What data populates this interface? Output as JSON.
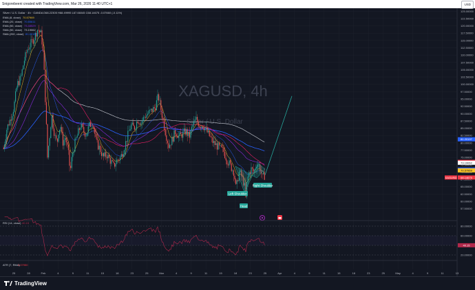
{
  "header": {
    "caption": "Snigorebeeni created with TradingView.com, Mar 26, 2026 11:40 UTC+1",
    "currency": "USD"
  },
  "legend": {
    "symbol_line": "Silver / U.S. Dollar · 4h · OANDA",
    "ohlc": "O68.22305 H68.49995 L67.66045 C68.14675 -0.07660 (-0.11%)",
    "ema8": {
      "label": "EMA (8, close)",
      "value": "70.57969"
    },
    "ema20": {
      "label": "EMA (20, close)",
      "value": "70.85611"
    },
    "ema50": {
      "label": "EMA (50, close)",
      "value": "73.48529"
    },
    "sma50": {
      "label": "SMA (50, close)",
      "value": "73.19062"
    },
    "sma200": {
      "label": "SMA (200, close)",
      "value": "81.20197"
    }
  },
  "watermark": {
    "symbol": "XAGUSD, 4h",
    "name": "Silver / U.S. Dollar"
  },
  "annotations": {
    "left": "Left Shoulder",
    "head": "Head",
    "right": "Right Shoulder"
  },
  "rsi": {
    "label": "RSI (14, close)",
    "value": "40.15",
    "levels": [
      "80.00000",
      "60.00000",
      "40.00000",
      "20.00000"
    ]
  },
  "atr": {
    "label": "ATR (7, RMA)",
    "value": "3.07950"
  },
  "chart_data": {
    "type": "candlestick",
    "symbol": "XAGUSD",
    "timeframe": "4h",
    "y_ticks": [
      "125.00000",
      "122.50000",
      "120.00000",
      "117.50000",
      "115.00000",
      "112.50000",
      "110.00000",
      "107.50000",
      "105.00000",
      "102.50000",
      "100.00000",
      "97.50000",
      "95.00000",
      "92.50000",
      "90.00000",
      "87.50000",
      "85.00000",
      "82.50000",
      "80.00000",
      "77.50000",
      "75.00000",
      "72.50000",
      "70.00000",
      "67.50000",
      "65.00000",
      "62.50000",
      "60.00000",
      "57.50000"
    ],
    "ylim": [
      56,
      126
    ],
    "x_ticks": [
      "25",
      "28",
      "Feb",
      "4",
      "9",
      "11",
      "15",
      "18",
      "23",
      "25",
      "Mar",
      "4",
      "9",
      "11",
      "15",
      "18",
      "23",
      "25",
      "Apr",
      "4",
      "9",
      "11",
      "15",
      "18",
      "23",
      "25",
      "May",
      "4",
      "9",
      "11",
      "13"
    ],
    "price_path": [
      [
        0,
        78
      ],
      [
        5,
        85
      ],
      [
        10,
        88
      ],
      [
        15,
        92
      ],
      [
        20,
        100
      ],
      [
        25,
        102
      ],
      [
        30,
        108
      ],
      [
        35,
        112
      ],
      [
        40,
        114
      ],
      [
        45,
        116
      ],
      [
        50,
        119
      ],
      [
        55,
        117
      ],
      [
        58,
        110
      ],
      [
        60,
        100
      ],
      [
        62,
        88
      ],
      [
        64,
        75
      ],
      [
        66,
        80
      ],
      [
        68,
        84
      ],
      [
        70,
        90
      ],
      [
        72,
        86
      ],
      [
        75,
        82
      ],
      [
        78,
        80
      ],
      [
        80,
        84
      ],
      [
        83,
        86
      ],
      [
        86,
        80
      ],
      [
        90,
        82
      ],
      [
        94,
        77
      ],
      [
        97,
        70
      ],
      [
        100,
        76
      ],
      [
        104,
        80
      ],
      [
        108,
        83
      ],
      [
        112,
        86
      ],
      [
        116,
        84
      ],
      [
        120,
        83
      ],
      [
        125,
        86
      ],
      [
        130,
        87
      ],
      [
        135,
        80
      ],
      [
        140,
        78
      ],
      [
        145,
        75
      ],
      [
        150,
        76
      ],
      [
        155,
        74
      ],
      [
        160,
        72
      ],
      [
        165,
        74
      ],
      [
        170,
        75
      ],
      [
        175,
        78
      ],
      [
        180,
        82
      ],
      [
        185,
        86
      ],
      [
        190,
        85
      ],
      [
        195,
        88
      ],
      [
        200,
        87
      ],
      [
        205,
        89
      ],
      [
        210,
        90
      ],
      [
        215,
        91
      ],
      [
        220,
        92
      ],
      [
        225,
        96
      ],
      [
        230,
        90
      ],
      [
        235,
        84
      ],
      [
        240,
        79
      ],
      [
        245,
        81
      ],
      [
        250,
        84
      ],
      [
        255,
        82
      ],
      [
        260,
        83
      ],
      [
        265,
        84
      ],
      [
        270,
        82
      ],
      [
        275,
        86
      ],
      [
        280,
        88
      ],
      [
        285,
        86
      ],
      [
        290,
        86
      ],
      [
        295,
        84
      ],
      [
        300,
        82
      ],
      [
        305,
        80
      ],
      [
        310,
        79
      ],
      [
        315,
        78
      ],
      [
        320,
        77
      ],
      [
        325,
        74
      ],
      [
        330,
        72
      ],
      [
        335,
        70
      ],
      [
        338,
        64
      ],
      [
        342,
        70
      ],
      [
        345,
        69
      ],
      [
        348,
        67
      ],
      [
        350,
        66
      ],
      [
        352,
        61
      ],
      [
        354,
        67
      ],
      [
        357,
        70
      ],
      [
        360,
        71
      ],
      [
        364,
        70
      ],
      [
        368,
        73
      ],
      [
        372,
        72
      ],
      [
        376,
        68
      ],
      [
        380,
        69
      ]
    ],
    "projection": [
      [
        380,
        69
      ],
      [
        424,
        96
      ]
    ],
    "price_labels": [
      {
        "value": 81.20197,
        "text": "81.20197",
        "color": "#2962ff"
      },
      {
        "value": 73.48529,
        "text": "73.48529",
        "color": "#f23645"
      },
      {
        "value": 73.19062,
        "text": "73.19062",
        "color": "#ffffff"
      },
      {
        "value": 70.85611,
        "text": "70.85611",
        "color": "#2962ff"
      },
      {
        "value": 70.57969,
        "text": "70.57969",
        "color": "#f7c325"
      },
      {
        "value": 68.14675,
        "text": "68.14675",
        "color": "#f23645"
      }
    ],
    "current_symbol_tag": "XAGUSD",
    "colors": {
      "up": "#26a69a",
      "down": "#ef5350",
      "projection": "#26a69a",
      "rsi": "#b2284b",
      "ema8": "#f7c325",
      "ema20": "#2962ff",
      "ema50": "#8a2be2",
      "sma50": "#e91e63",
      "sma200": "#d1d4dc"
    }
  }
}
